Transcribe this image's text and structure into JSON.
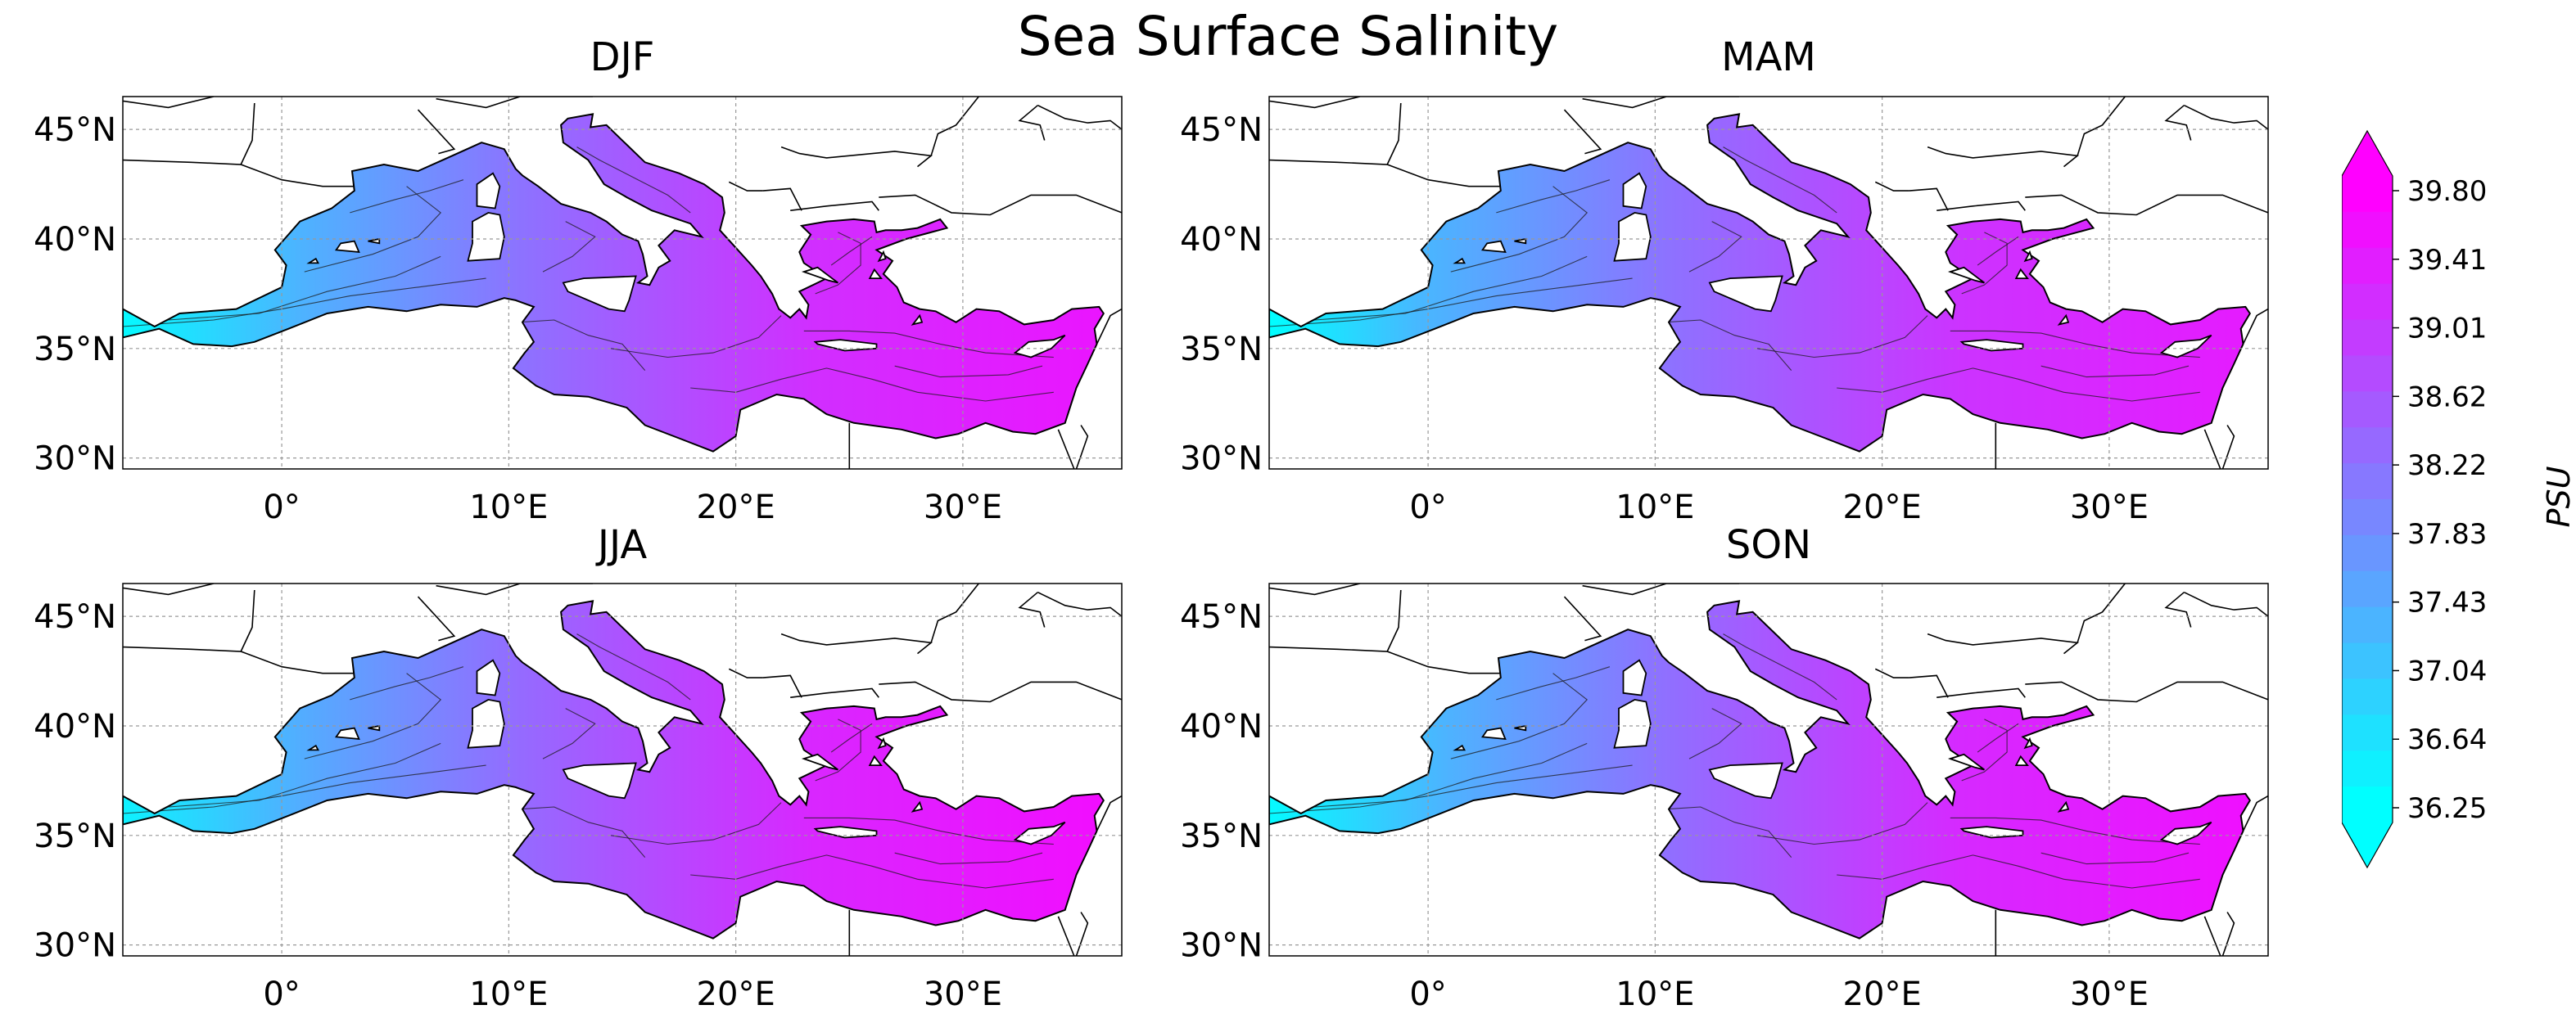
{
  "figure": {
    "title": "Sea Surface Salinity",
    "panels": [
      {
        "title": "DJF"
      },
      {
        "title": "MAM"
      },
      {
        "title": "JJA"
      },
      {
        "title": "SON"
      }
    ],
    "lat_ticks": [
      "45°N",
      "40°N",
      "35°N",
      "30°N"
    ],
    "lon_ticks": [
      "0°",
      "10°E",
      "20°E",
      "30°E"
    ]
  },
  "map": {
    "extent": {
      "lon": [
        -7,
        37
      ],
      "lat": [
        29.5,
        46.5
      ]
    },
    "gridlines": "dotted",
    "colors": {
      "low": "#00ffff",
      "high": "#ff00ff",
      "contour": "#1a1a1a",
      "land_outline": "#000000"
    }
  },
  "colorbar": {
    "label": "PSU",
    "ticks": [
      "39.80",
      "39.41",
      "39.01",
      "38.62",
      "38.22",
      "37.83",
      "37.43",
      "37.04",
      "36.64",
      "36.25"
    ],
    "min": 36.25,
    "max": 39.8,
    "extend": "both",
    "colormap": "cool"
  }
}
